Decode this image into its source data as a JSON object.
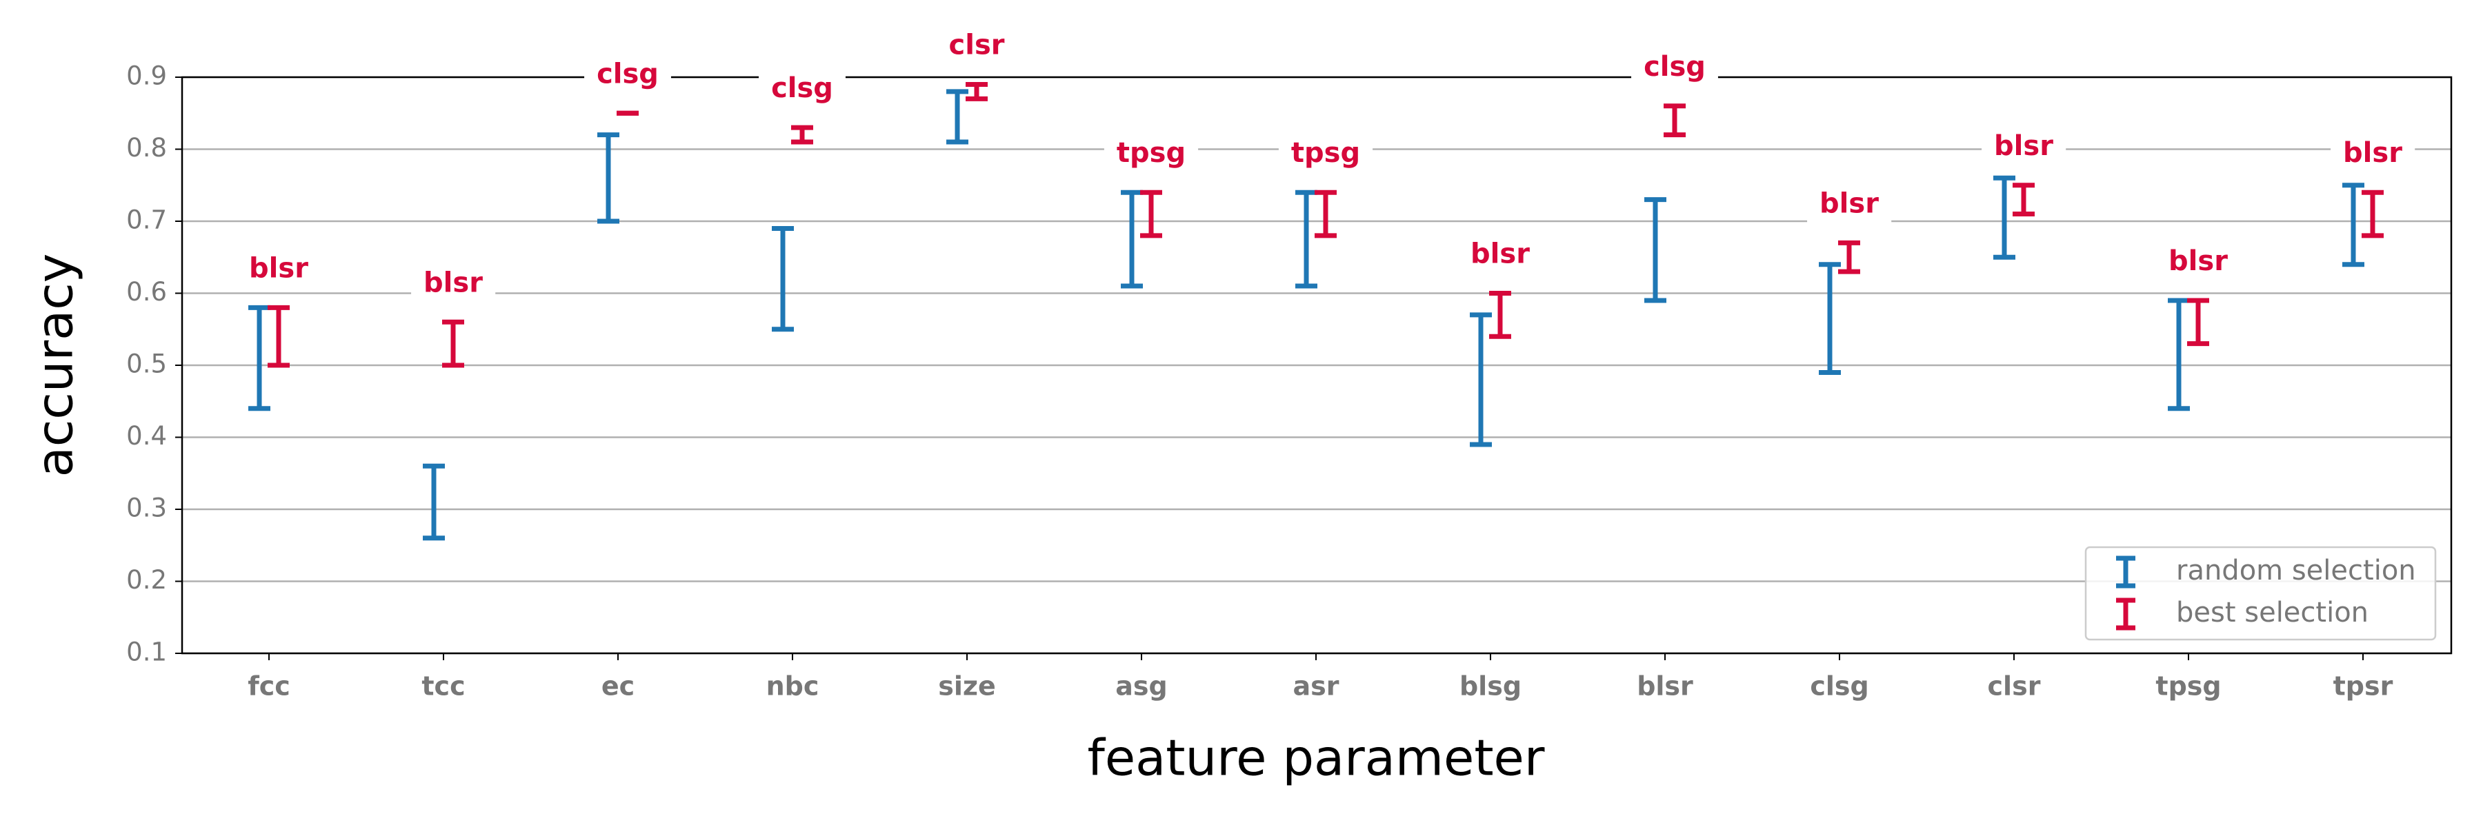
{
  "chart_data": {
    "type": "range",
    "xlabel": "feature parameter",
    "ylabel": "accuracy",
    "categories": [
      "fcc",
      "tcc",
      "ec",
      "nbc",
      "size",
      "asg",
      "asr",
      "blsg",
      "blsr",
      "clsg",
      "clsr",
      "tpsg",
      "tpsr"
    ],
    "series": [
      {
        "name": "random selection",
        "color": "#1f77b4",
        "low": [
          0.44,
          0.26,
          0.7,
          0.55,
          0.81,
          0.61,
          0.61,
          0.39,
          0.59,
          0.49,
          0.65,
          0.44,
          0.64
        ],
        "high": [
          0.58,
          0.36,
          0.82,
          0.69,
          0.88,
          0.74,
          0.74,
          0.57,
          0.73,
          0.64,
          0.76,
          0.59,
          0.75
        ]
      },
      {
        "name": "best selection",
        "color": "#d6083b",
        "low": [
          0.5,
          0.5,
          0.85,
          0.81,
          0.87,
          0.68,
          0.68,
          0.54,
          0.82,
          0.63,
          0.71,
          0.53,
          0.68
        ],
        "high": [
          0.58,
          0.56,
          0.85,
          0.83,
          0.89,
          0.74,
          0.74,
          0.6,
          0.86,
          0.67,
          0.75,
          0.59,
          0.74
        ],
        "labels": [
          "blsr",
          "blsr",
          "clsg",
          "clsg",
          "clsr",
          "tpsg",
          "tpsg",
          "blsr",
          "clsg",
          "blsr",
          "blsr",
          "blsr",
          "blsr"
        ]
      }
    ],
    "ylim": [
      0.1,
      0.9
    ],
    "yticks": [
      0.1,
      0.2,
      0.3,
      0.4,
      0.5,
      0.6,
      0.7,
      0.8,
      0.9
    ],
    "grid": true,
    "legend": "lower right"
  }
}
